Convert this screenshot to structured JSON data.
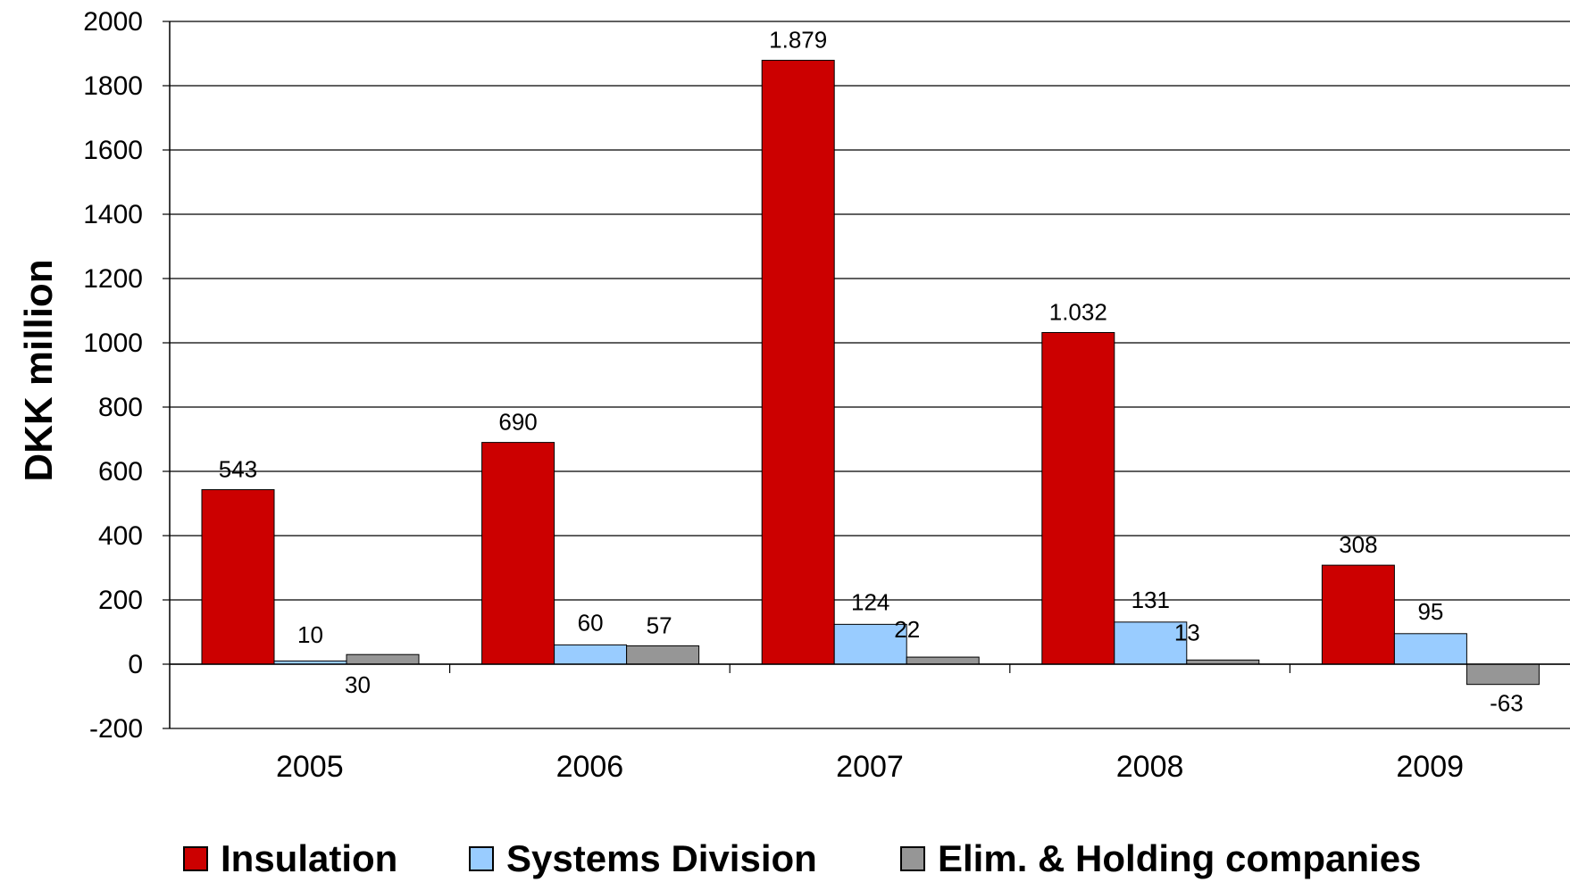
{
  "chart_data": {
    "type": "bar",
    "categories": [
      "2005",
      "2006",
      "2007",
      "2008",
      "2009"
    ],
    "series": [
      {
        "name": "Insulation",
        "color": "#CC0000",
        "values": [
          543,
          690,
          1879,
          1032,
          308
        ],
        "labels": [
          "543",
          "690",
          "1.879",
          "1.032",
          "308"
        ]
      },
      {
        "name": "Systems Division",
        "color": "#99CCFF",
        "values": [
          10,
          60,
          124,
          131,
          95
        ],
        "labels": [
          "10",
          "60",
          "124",
          "131",
          "95"
        ]
      },
      {
        "name": "Elim. & Holding companies",
        "color": "#969696",
        "values": [
          30,
          57,
          22,
          13,
          -63
        ],
        "labels": [
          "30",
          "57",
          "22",
          "13",
          "-63"
        ]
      }
    ],
    "ylabel": "DKK million",
    "xlabel": "",
    "ylim": [
      -200,
      2000
    ],
    "yticks": [
      "-200",
      "0",
      "200",
      "400",
      "600",
      "800",
      "1000",
      "1200",
      "1400",
      "1600",
      "1800",
      "2000"
    ],
    "grid": true,
    "legend_position": "bottom"
  }
}
